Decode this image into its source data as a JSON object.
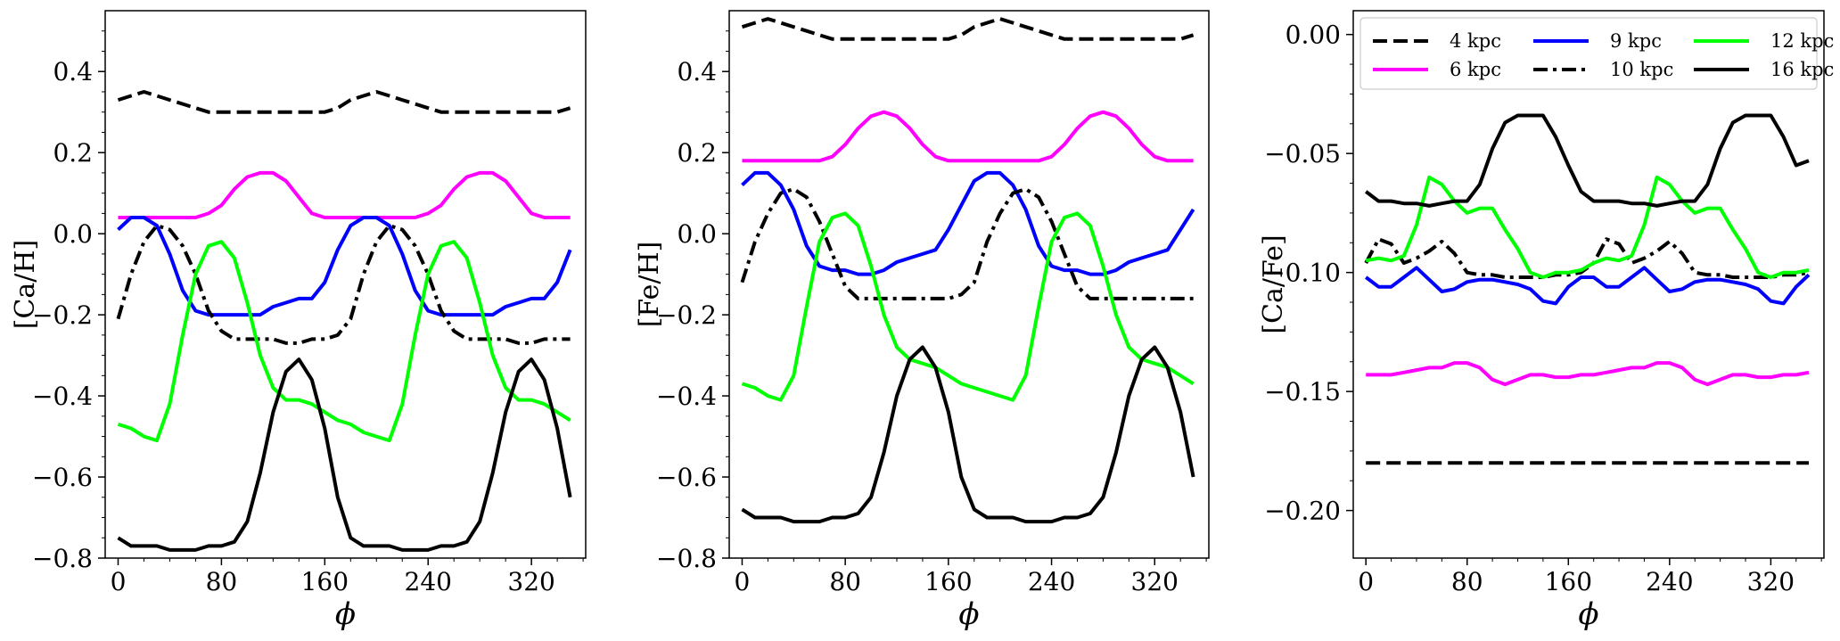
{
  "chart_data": [
    {
      "type": "line",
      "xlabel": "ϕ",
      "ylabel": "[Ca/H]",
      "xlim": [
        -10,
        362
      ],
      "ylim": [
        -0.8,
        0.55
      ],
      "xticks": [
        0,
        80,
        160,
        240,
        320
      ],
      "xtick_labels": [
        "0",
        "80",
        "160",
        "240",
        "320"
      ],
      "yticks": [
        -0.8,
        -0.6,
        -0.4,
        -0.2,
        0.0,
        0.2,
        0.4
      ],
      "ytick_labels": [
        "−0.8",
        "−0.6",
        "−0.4",
        "−0.2",
        "0.0",
        "0.2",
        "0.4"
      ],
      "x": [
        0,
        10,
        20,
        30,
        40,
        50,
        60,
        70,
        80,
        90,
        100,
        110,
        120,
        130,
        140,
        150,
        160,
        170,
        180,
        190,
        200,
        210,
        220,
        230,
        240,
        250,
        260,
        270,
        280,
        290,
        300,
        310,
        320,
        330,
        340,
        350
      ],
      "series": [
        {
          "name": "4 kpc",
          "color": "#000000",
          "dash": "dashed",
          "values": [
            0.33,
            0.34,
            0.35,
            0.34,
            0.33,
            0.32,
            0.31,
            0.3,
            0.3,
            0.3,
            0.3,
            0.3,
            0.3,
            0.3,
            0.3,
            0.3,
            0.3,
            0.31,
            0.33,
            0.34,
            0.35,
            0.34,
            0.33,
            0.32,
            0.31,
            0.3,
            0.3,
            0.3,
            0.3,
            0.3,
            0.3,
            0.3,
            0.3,
            0.3,
            0.3,
            0.31
          ]
        },
        {
          "name": "6 kpc",
          "color": "#ff00ff",
          "dash": "solid",
          "values": [
            0.04,
            0.04,
            0.04,
            0.04,
            0.04,
            0.04,
            0.04,
            0.05,
            0.07,
            0.11,
            0.14,
            0.15,
            0.15,
            0.13,
            0.09,
            0.05,
            0.04,
            0.04,
            0.04,
            0.04,
            0.04,
            0.04,
            0.04,
            0.04,
            0.05,
            0.07,
            0.11,
            0.14,
            0.15,
            0.15,
            0.13,
            0.09,
            0.05,
            0.04,
            0.04,
            0.04
          ]
        },
        {
          "name": "9 kpc",
          "color": "#0000ff",
          "dash": "solid",
          "values": [
            0.01,
            0.04,
            0.04,
            0.02,
            -0.05,
            -0.14,
            -0.19,
            -0.2,
            -0.2,
            -0.2,
            -0.2,
            -0.2,
            -0.18,
            -0.17,
            -0.16,
            -0.16,
            -0.12,
            -0.04,
            0.02,
            0.04,
            0.04,
            0.02,
            -0.05,
            -0.14,
            -0.19,
            -0.2,
            -0.2,
            -0.2,
            -0.2,
            -0.2,
            -0.18,
            -0.17,
            -0.16,
            -0.16,
            -0.12,
            -0.04
          ]
        },
        {
          "name": "10 kpc",
          "color": "#000000",
          "dash": "dashdot",
          "values": [
            -0.21,
            -0.1,
            -0.02,
            0.02,
            0.01,
            -0.03,
            -0.1,
            -0.19,
            -0.24,
            -0.26,
            -0.26,
            -0.26,
            -0.26,
            -0.27,
            -0.27,
            -0.26,
            -0.26,
            -0.25,
            -0.21,
            -0.1,
            -0.02,
            0.02,
            0.01,
            -0.03,
            -0.1,
            -0.19,
            -0.24,
            -0.26,
            -0.26,
            -0.26,
            -0.26,
            -0.27,
            -0.27,
            -0.26,
            -0.26,
            -0.26
          ]
        },
        {
          "name": "12 kpc",
          "color": "#00ff00",
          "dash": "solid",
          "values": [
            -0.47,
            -0.48,
            -0.5,
            -0.51,
            -0.42,
            -0.25,
            -0.1,
            -0.03,
            -0.02,
            -0.06,
            -0.17,
            -0.3,
            -0.38,
            -0.41,
            -0.41,
            -0.42,
            -0.44,
            -0.46,
            -0.47,
            -0.49,
            -0.5,
            -0.51,
            -0.42,
            -0.25,
            -0.1,
            -0.03,
            -0.02,
            -0.06,
            -0.17,
            -0.3,
            -0.38,
            -0.41,
            -0.41,
            -0.42,
            -0.44,
            -0.46
          ]
        },
        {
          "name": "16 kpc",
          "color": "#000000",
          "dash": "solid",
          "values": [
            -0.75,
            -0.77,
            -0.77,
            -0.77,
            -0.78,
            -0.78,
            -0.78,
            -0.77,
            -0.77,
            -0.76,
            -0.71,
            -0.59,
            -0.44,
            -0.34,
            -0.31,
            -0.36,
            -0.48,
            -0.65,
            -0.75,
            -0.77,
            -0.77,
            -0.77,
            -0.78,
            -0.78,
            -0.78,
            -0.77,
            -0.77,
            -0.76,
            -0.71,
            -0.59,
            -0.44,
            -0.34,
            -0.31,
            -0.36,
            -0.48,
            -0.65
          ]
        }
      ]
    },
    {
      "type": "line",
      "xlabel": "ϕ",
      "ylabel": "[Fe/H]",
      "xlim": [
        -10,
        362
      ],
      "ylim": [
        -0.8,
        0.55
      ],
      "xticks": [
        0,
        80,
        160,
        240,
        320
      ],
      "xtick_labels": [
        "0",
        "80",
        "160",
        "240",
        "320"
      ],
      "yticks": [
        -0.8,
        -0.6,
        -0.4,
        -0.2,
        0.0,
        0.2,
        0.4
      ],
      "ytick_labels": [
        "−0.8",
        "−0.6",
        "−0.4",
        "−0.2",
        "0.0",
        "0.2",
        "0.4"
      ],
      "x": [
        0,
        10,
        20,
        30,
        40,
        50,
        60,
        70,
        80,
        90,
        100,
        110,
        120,
        130,
        140,
        150,
        160,
        170,
        180,
        190,
        200,
        210,
        220,
        230,
        240,
        250,
        260,
        270,
        280,
        290,
        300,
        310,
        320,
        330,
        340,
        350
      ],
      "series": [
        {
          "name": "4 kpc",
          "color": "#000000",
          "dash": "dashed",
          "values": [
            0.51,
            0.52,
            0.53,
            0.52,
            0.51,
            0.5,
            0.49,
            0.48,
            0.48,
            0.48,
            0.48,
            0.48,
            0.48,
            0.48,
            0.48,
            0.48,
            0.48,
            0.49,
            0.51,
            0.52,
            0.53,
            0.52,
            0.51,
            0.5,
            0.49,
            0.48,
            0.48,
            0.48,
            0.48,
            0.48,
            0.48,
            0.48,
            0.48,
            0.48,
            0.48,
            0.49
          ]
        },
        {
          "name": "6 kpc",
          "color": "#ff00ff",
          "dash": "solid",
          "values": [
            0.18,
            0.18,
            0.18,
            0.18,
            0.18,
            0.18,
            0.18,
            0.19,
            0.22,
            0.26,
            0.29,
            0.3,
            0.29,
            0.26,
            0.22,
            0.19,
            0.18,
            0.18,
            0.18,
            0.18,
            0.18,
            0.18,
            0.18,
            0.18,
            0.19,
            0.22,
            0.26,
            0.29,
            0.3,
            0.29,
            0.26,
            0.22,
            0.19,
            0.18,
            0.18,
            0.18
          ]
        },
        {
          "name": "9 kpc",
          "color": "#0000ff",
          "dash": "solid",
          "values": [
            0.12,
            0.15,
            0.15,
            0.12,
            0.06,
            -0.03,
            -0.08,
            -0.09,
            -0.09,
            -0.1,
            -0.1,
            -0.09,
            -0.07,
            -0.06,
            -0.05,
            -0.04,
            0.01,
            0.07,
            0.13,
            0.15,
            0.15,
            0.12,
            0.06,
            -0.03,
            -0.08,
            -0.09,
            -0.09,
            -0.1,
            -0.1,
            -0.09,
            -0.07,
            -0.06,
            -0.05,
            -0.04,
            0.01,
            0.06
          ]
        },
        {
          "name": "10 kpc",
          "color": "#000000",
          "dash": "dashdot",
          "values": [
            -0.12,
            -0.02,
            0.05,
            0.1,
            0.11,
            0.09,
            0.03,
            -0.05,
            -0.13,
            -0.16,
            -0.16,
            -0.16,
            -0.16,
            -0.16,
            -0.16,
            -0.16,
            -0.16,
            -0.15,
            -0.12,
            -0.02,
            0.05,
            0.1,
            0.11,
            0.09,
            0.03,
            -0.05,
            -0.13,
            -0.16,
            -0.16,
            -0.16,
            -0.16,
            -0.16,
            -0.16,
            -0.16,
            -0.16,
            -0.16
          ]
        },
        {
          "name": "12 kpc",
          "color": "#00ff00",
          "dash": "solid",
          "values": [
            -0.37,
            -0.38,
            -0.4,
            -0.41,
            -0.35,
            -0.18,
            -0.02,
            0.04,
            0.05,
            0.02,
            -0.08,
            -0.2,
            -0.28,
            -0.31,
            -0.32,
            -0.33,
            -0.35,
            -0.37,
            -0.38,
            -0.39,
            -0.4,
            -0.41,
            -0.35,
            -0.18,
            -0.02,
            0.04,
            0.05,
            0.02,
            -0.08,
            -0.2,
            -0.28,
            -0.31,
            -0.32,
            -0.33,
            -0.35,
            -0.37
          ]
        },
        {
          "name": "16 kpc",
          "color": "#000000",
          "dash": "solid",
          "values": [
            -0.68,
            -0.7,
            -0.7,
            -0.7,
            -0.71,
            -0.71,
            -0.71,
            -0.7,
            -0.7,
            -0.69,
            -0.65,
            -0.54,
            -0.4,
            -0.31,
            -0.28,
            -0.33,
            -0.44,
            -0.6,
            -0.68,
            -0.7,
            -0.7,
            -0.7,
            -0.71,
            -0.71,
            -0.71,
            -0.7,
            -0.7,
            -0.69,
            -0.65,
            -0.54,
            -0.4,
            -0.31,
            -0.28,
            -0.33,
            -0.44,
            -0.6
          ]
        }
      ]
    },
    {
      "type": "line",
      "xlabel": "ϕ",
      "ylabel": "[Ca/Fe]",
      "xlim": [
        -10,
        362
      ],
      "ylim": [
        -0.22,
        0.01
      ],
      "xticks": [
        0,
        80,
        160,
        240,
        320
      ],
      "xtick_labels": [
        "0",
        "80",
        "160",
        "240",
        "320"
      ],
      "yticks": [
        -0.2,
        -0.15,
        -0.1,
        -0.05,
        0.0
      ],
      "ytick_labels": [
        "−0.20",
        "−0.15",
        "−0.10",
        "−0.05",
        "0.00"
      ],
      "x": [
        0,
        10,
        20,
        30,
        40,
        50,
        60,
        70,
        80,
        90,
        100,
        110,
        120,
        130,
        140,
        150,
        160,
        170,
        180,
        190,
        200,
        210,
        220,
        230,
        240,
        250,
        260,
        270,
        280,
        290,
        300,
        310,
        320,
        330,
        340,
        350
      ],
      "legend": {
        "placement": "top",
        "columns": 3
      },
      "series": [
        {
          "name": "4 kpc",
          "color": "#000000",
          "dash": "dashed",
          "values": [
            -0.18,
            -0.18,
            -0.18,
            -0.18,
            -0.18,
            -0.18,
            -0.18,
            -0.18,
            -0.18,
            -0.18,
            -0.18,
            -0.18,
            -0.18,
            -0.18,
            -0.18,
            -0.18,
            -0.18,
            -0.18,
            -0.18,
            -0.18,
            -0.18,
            -0.18,
            -0.18,
            -0.18,
            -0.18,
            -0.18,
            -0.18,
            -0.18,
            -0.18,
            -0.18,
            -0.18,
            -0.18,
            -0.18,
            -0.18,
            -0.18,
            -0.18
          ]
        },
        {
          "name": "6 kpc",
          "color": "#ff00ff",
          "dash": "solid",
          "values": [
            -0.143,
            -0.143,
            -0.143,
            -0.142,
            -0.141,
            -0.14,
            -0.14,
            -0.138,
            -0.138,
            -0.14,
            -0.145,
            -0.147,
            -0.145,
            -0.143,
            -0.143,
            -0.144,
            -0.144,
            -0.143,
            -0.143,
            -0.142,
            -0.141,
            -0.14,
            -0.14,
            -0.138,
            -0.138,
            -0.14,
            -0.145,
            -0.147,
            -0.145,
            -0.143,
            -0.143,
            -0.144,
            -0.144,
            -0.143,
            -0.143,
            -0.142
          ]
        },
        {
          "name": "9 kpc",
          "color": "#0000ff",
          "dash": "solid",
          "values": [
            -0.102,
            -0.106,
            -0.106,
            -0.102,
            -0.098,
            -0.103,
            -0.108,
            -0.107,
            -0.104,
            -0.103,
            -0.103,
            -0.104,
            -0.105,
            -0.107,
            -0.112,
            -0.113,
            -0.106,
            -0.102,
            -0.102,
            -0.106,
            -0.106,
            -0.102,
            -0.098,
            -0.103,
            -0.108,
            -0.107,
            -0.104,
            -0.103,
            -0.103,
            -0.104,
            -0.105,
            -0.107,
            -0.112,
            -0.113,
            -0.106,
            -0.101
          ]
        },
        {
          "name": "10 kpc",
          "color": "#000000",
          "dash": "dashdot",
          "values": [
            -0.096,
            -0.086,
            -0.088,
            -0.096,
            -0.094,
            -0.091,
            -0.087,
            -0.092,
            -0.1,
            -0.101,
            -0.101,
            -0.102,
            -0.102,
            -0.102,
            -0.102,
            -0.101,
            -0.101,
            -0.1,
            -0.096,
            -0.086,
            -0.088,
            -0.096,
            -0.094,
            -0.091,
            -0.087,
            -0.092,
            -0.1,
            -0.101,
            -0.101,
            -0.102,
            -0.102,
            -0.102,
            -0.102,
            -0.101,
            -0.101,
            -0.1
          ]
        },
        {
          "name": "12 kpc",
          "color": "#00ff00",
          "dash": "solid",
          "values": [
            -0.095,
            -0.094,
            -0.095,
            -0.093,
            -0.08,
            -0.06,
            -0.063,
            -0.07,
            -0.075,
            -0.073,
            -0.073,
            -0.082,
            -0.09,
            -0.1,
            -0.102,
            -0.1,
            -0.1,
            -0.099,
            -0.096,
            -0.094,
            -0.095,
            -0.093,
            -0.08,
            -0.06,
            -0.063,
            -0.07,
            -0.075,
            -0.073,
            -0.073,
            -0.082,
            -0.09,
            -0.1,
            -0.102,
            -0.1,
            -0.1,
            -0.099
          ]
        },
        {
          "name": "16 kpc",
          "color": "#000000",
          "dash": "solid",
          "values": [
            -0.066,
            -0.07,
            -0.07,
            -0.071,
            -0.071,
            -0.072,
            -0.071,
            -0.07,
            -0.07,
            -0.063,
            -0.048,
            -0.037,
            -0.034,
            -0.034,
            -0.034,
            -0.043,
            -0.055,
            -0.066,
            -0.07,
            -0.07,
            -0.07,
            -0.071,
            -0.071,
            -0.072,
            -0.071,
            -0.07,
            -0.07,
            -0.063,
            -0.048,
            -0.037,
            -0.034,
            -0.034,
            -0.034,
            -0.043,
            -0.055,
            -0.053
          ]
        }
      ]
    }
  ]
}
